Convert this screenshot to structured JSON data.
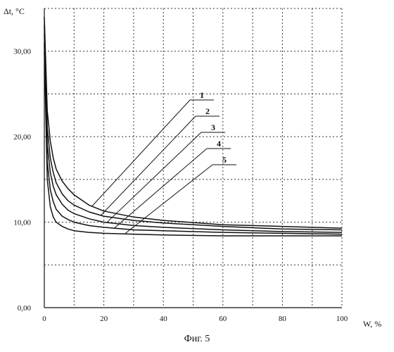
{
  "chart_data": {
    "type": "line",
    "title": "",
    "xlabel": "W, %",
    "ylabel": "Δt, °C",
    "xlim": [
      0,
      100
    ],
    "ylim": [
      0,
      35
    ],
    "xticks": [
      0,
      20,
      40,
      60,
      80,
      100
    ],
    "xtick_labels": [
      "0",
      "20",
      "40",
      "60",
      "80",
      "100"
    ],
    "yticks": [
      0,
      10,
      20,
      30
    ],
    "ytick_labels": [
      "0,00",
      "10,00",
      "20,00",
      "30,00"
    ],
    "grid": true,
    "legend": "callout labels",
    "series": [
      {
        "name": "1",
        "x": [
          0,
          1,
          2,
          3,
          4,
          6,
          8,
          10,
          15,
          20,
          30,
          40,
          60,
          80,
          100
        ],
        "y": [
          34,
          23,
          19.5,
          17.5,
          16.2,
          14.8,
          13.9,
          13.2,
          12.0,
          11.3,
          10.6,
          10.2,
          9.7,
          9.5,
          9.3
        ]
      },
      {
        "name": "2",
        "x": [
          0,
          1,
          2,
          3,
          4,
          6,
          8,
          10,
          15,
          20,
          30,
          40,
          60,
          80,
          100
        ],
        "y": [
          33,
          21,
          17.5,
          15.8,
          14.6,
          13.3,
          12.5,
          12.0,
          11.2,
          10.7,
          10.2,
          9.9,
          9.5,
          9.2,
          9.1
        ]
      },
      {
        "name": "3",
        "x": [
          0,
          1,
          2,
          3,
          4,
          6,
          8,
          10,
          15,
          20,
          30,
          40,
          60,
          80,
          100
        ],
        "y": [
          32,
          19,
          15.8,
          14.2,
          13.2,
          12.1,
          11.4,
          11.0,
          10.4,
          10.0,
          9.6,
          9.4,
          9.1,
          8.9,
          8.8
        ]
      },
      {
        "name": "4",
        "x": [
          0,
          1,
          2,
          3,
          4,
          6,
          8,
          10,
          15,
          20,
          30,
          40,
          60,
          80,
          100
        ],
        "y": [
          31,
          17,
          13.8,
          12.4,
          11.5,
          10.7,
          10.3,
          10.0,
          9.6,
          9.4,
          9.1,
          9.0,
          8.8,
          8.7,
          8.6
        ]
      },
      {
        "name": "5",
        "x": [
          0,
          1,
          2,
          3,
          4,
          6,
          8,
          10,
          15,
          20,
          30,
          40,
          60,
          80,
          100
        ],
        "y": [
          30,
          15,
          11.8,
          10.6,
          10.0,
          9.5,
          9.2,
          9.0,
          8.8,
          8.7,
          8.6,
          8.5,
          8.4,
          8.4,
          8.4
        ]
      }
    ]
  },
  "caption": "Фиг. 5"
}
